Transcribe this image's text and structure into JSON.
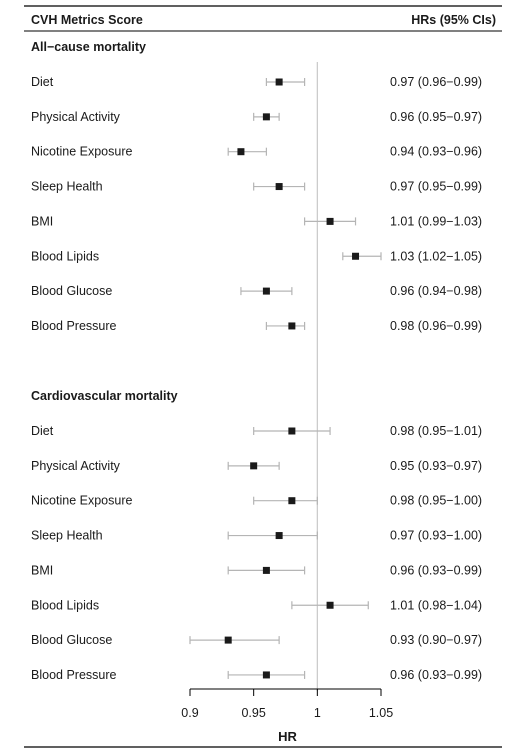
{
  "chart_data": {
    "type": "forest",
    "header": {
      "left": "CVH Metrics Score",
      "right": "HRs (95% CIs)"
    },
    "xlabel": "HR",
    "xlim": [
      0.9,
      1.05
    ],
    "xticks": [
      "0.9",
      "0.95",
      "1",
      "1.05"
    ],
    "reference_line": 1,
    "colors": {
      "marker": "#1a1a1a",
      "ci": "#b5b5b5",
      "reference": "#c8c8c8",
      "rule": "#000000"
    },
    "groups": [
      {
        "name": "All−cause mortality",
        "rows": [
          {
            "label": "Diet",
            "hr": 0.97,
            "lo": 0.96,
            "hi": 0.99,
            "text": "0.97 (0.96−0.99)"
          },
          {
            "label": "Physical Activity",
            "hr": 0.96,
            "lo": 0.95,
            "hi": 0.97,
            "text": "0.96 (0.95−0.97)"
          },
          {
            "label": "Nicotine Exposure",
            "hr": 0.94,
            "lo": 0.93,
            "hi": 0.96,
            "text": "0.94 (0.93−0.96)"
          },
          {
            "label": "Sleep Health",
            "hr": 0.97,
            "lo": 0.95,
            "hi": 0.99,
            "text": "0.97 (0.95−0.99)"
          },
          {
            "label": "BMI",
            "hr": 1.01,
            "lo": 0.99,
            "hi": 1.03,
            "text": "1.01 (0.99−1.03)"
          },
          {
            "label": "Blood Lipids",
            "hr": 1.03,
            "lo": 1.02,
            "hi": 1.05,
            "text": "1.03 (1.02−1.05)"
          },
          {
            "label": "Blood Glucose",
            "hr": 0.96,
            "lo": 0.94,
            "hi": 0.98,
            "text": "0.96 (0.94−0.98)"
          },
          {
            "label": "Blood Pressure",
            "hr": 0.98,
            "lo": 0.96,
            "hi": 0.99,
            "text": "0.98 (0.96−0.99)"
          }
        ]
      },
      {
        "name": "Cardiovascular mortality",
        "rows": [
          {
            "label": "Diet",
            "hr": 0.98,
            "lo": 0.95,
            "hi": 1.01,
            "text": "0.98 (0.95−1.01)"
          },
          {
            "label": "Physical Activity",
            "hr": 0.95,
            "lo": 0.93,
            "hi": 0.97,
            "text": "0.95 (0.93−0.97)"
          },
          {
            "label": "Nicotine Exposure",
            "hr": 0.98,
            "lo": 0.95,
            "hi": 1.0,
            "text": "0.98 (0.95−1.00)"
          },
          {
            "label": "Sleep Health",
            "hr": 0.97,
            "lo": 0.93,
            "hi": 1.0,
            "text": "0.97 (0.93−1.00)"
          },
          {
            "label": "BMI",
            "hr": 0.96,
            "lo": 0.93,
            "hi": 0.99,
            "text": "0.96 (0.93−0.99)"
          },
          {
            "label": "Blood Lipids",
            "hr": 1.01,
            "lo": 0.98,
            "hi": 1.04,
            "text": "1.01 (0.98−1.04)"
          },
          {
            "label": "Blood Glucose",
            "hr": 0.93,
            "lo": 0.9,
            "hi": 0.97,
            "text": "0.93 (0.90−0.97)"
          },
          {
            "label": "Blood Pressure",
            "hr": 0.96,
            "lo": 0.93,
            "hi": 0.99,
            "text": "0.96 (0.93−0.99)"
          }
        ]
      }
    ]
  }
}
